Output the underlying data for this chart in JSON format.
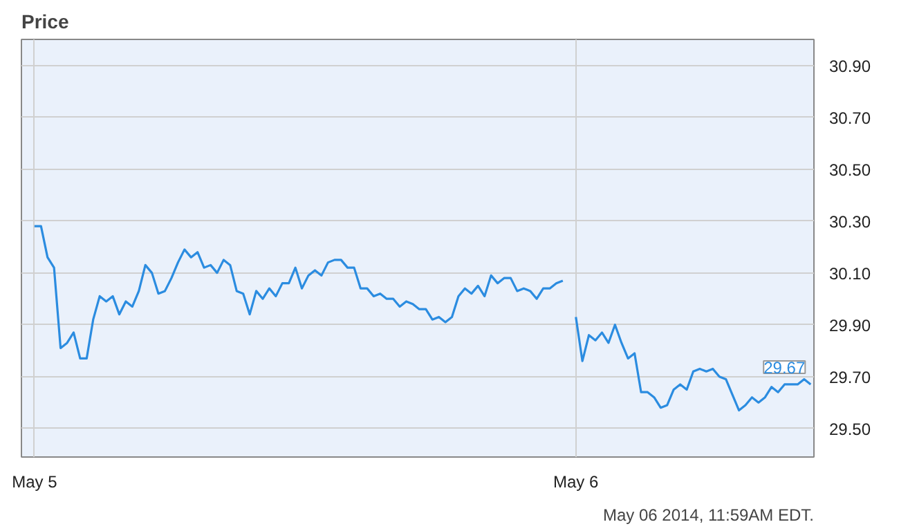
{
  "chart_data": {
    "type": "line",
    "title": "Price",
    "categories": [
      "May 5",
      null,
      null,
      null,
      null,
      null,
      null,
      null,
      null,
      null,
      null,
      null,
      null,
      null,
      null,
      null,
      null,
      null,
      null,
      null,
      null,
      null,
      null,
      null,
      null,
      null,
      null,
      null,
      null,
      null,
      null,
      null,
      null,
      null,
      null,
      null,
      null,
      null,
      null,
      null,
      null,
      null,
      null,
      null,
      null,
      null,
      null,
      null,
      null,
      null,
      null,
      null,
      null,
      null,
      null,
      null,
      null,
      null,
      null,
      null,
      null,
      null,
      null,
      null,
      null,
      null,
      null,
      null,
      null,
      null,
      null,
      null,
      null,
      null,
      null,
      null,
      null,
      null,
      null,
      null,
      null,
      null,
      null,
      "May 6",
      null,
      null,
      null,
      null,
      null,
      null,
      null,
      null,
      null,
      null,
      null,
      null,
      null,
      null,
      null,
      null,
      null,
      null,
      null,
      null,
      null,
      null,
      null,
      null,
      null,
      null,
      null,
      null,
      null,
      null,
      null,
      null,
      null,
      null,
      null,
      null
    ],
    "series": [
      {
        "color": "#2b8ce0",
        "values": [
          30.28,
          30.28,
          30.16,
          30.12,
          29.81,
          29.83,
          29.87,
          29.77,
          29.77,
          29.92,
          30.01,
          29.99,
          30.01,
          29.94,
          29.99,
          29.97,
          30.03,
          30.13,
          30.1,
          30.02,
          30.03,
          30.08,
          30.14,
          30.19,
          30.16,
          30.18,
          30.12,
          30.13,
          30.1,
          30.15,
          30.13,
          30.03,
          30.02,
          29.94,
          30.03,
          30.0,
          30.04,
          30.01,
          30.06,
          30.06,
          30.12,
          30.04,
          30.09,
          30.11,
          30.09,
          30.14,
          30.15,
          30.15,
          30.12,
          30.12,
          30.04,
          30.04,
          30.01,
          30.02,
          30.0,
          30.0,
          29.97,
          29.99,
          29.98,
          29.96,
          29.96,
          29.92,
          29.93,
          29.91,
          29.93,
          30.01,
          30.04,
          30.02,
          30.05,
          30.01,
          30.09,
          30.06,
          30.08,
          30.08,
          30.03,
          30.04,
          30.03,
          30.0,
          30.04,
          30.04,
          30.06,
          30.07,
          null,
          29.93,
          29.76,
          29.86,
          29.84,
          29.87,
          29.83,
          29.9,
          29.83,
          29.77,
          29.79,
          29.64,
          29.64,
          29.62,
          29.58,
          29.59,
          29.65,
          29.67,
          29.65,
          29.72,
          29.73,
          29.72,
          29.73,
          29.7,
          29.69,
          29.63,
          29.57,
          29.59,
          29.62,
          29.6,
          29.62,
          29.66,
          29.64,
          29.67,
          29.67,
          29.67,
          29.69,
          29.67
        ]
      }
    ],
    "ylim": [
      29.39,
      31.0
    ],
    "yticks": [
      {
        "value": 29.5,
        "label": "29.50"
      },
      {
        "value": 29.7,
        "label": "29.70"
      },
      {
        "value": 29.9,
        "label": "29.90"
      },
      {
        "value": 30.1,
        "label": "30.10"
      },
      {
        "value": 30.3,
        "label": "30.30"
      },
      {
        "value": 30.5,
        "label": "30.50"
      },
      {
        "value": 30.7,
        "label": "30.70"
      },
      {
        "value": 30.9,
        "label": "30.90"
      }
    ],
    "grid": true,
    "annotations": [
      "29.67",
      "May 06 2014, 11:59AM EDT."
    ]
  }
}
